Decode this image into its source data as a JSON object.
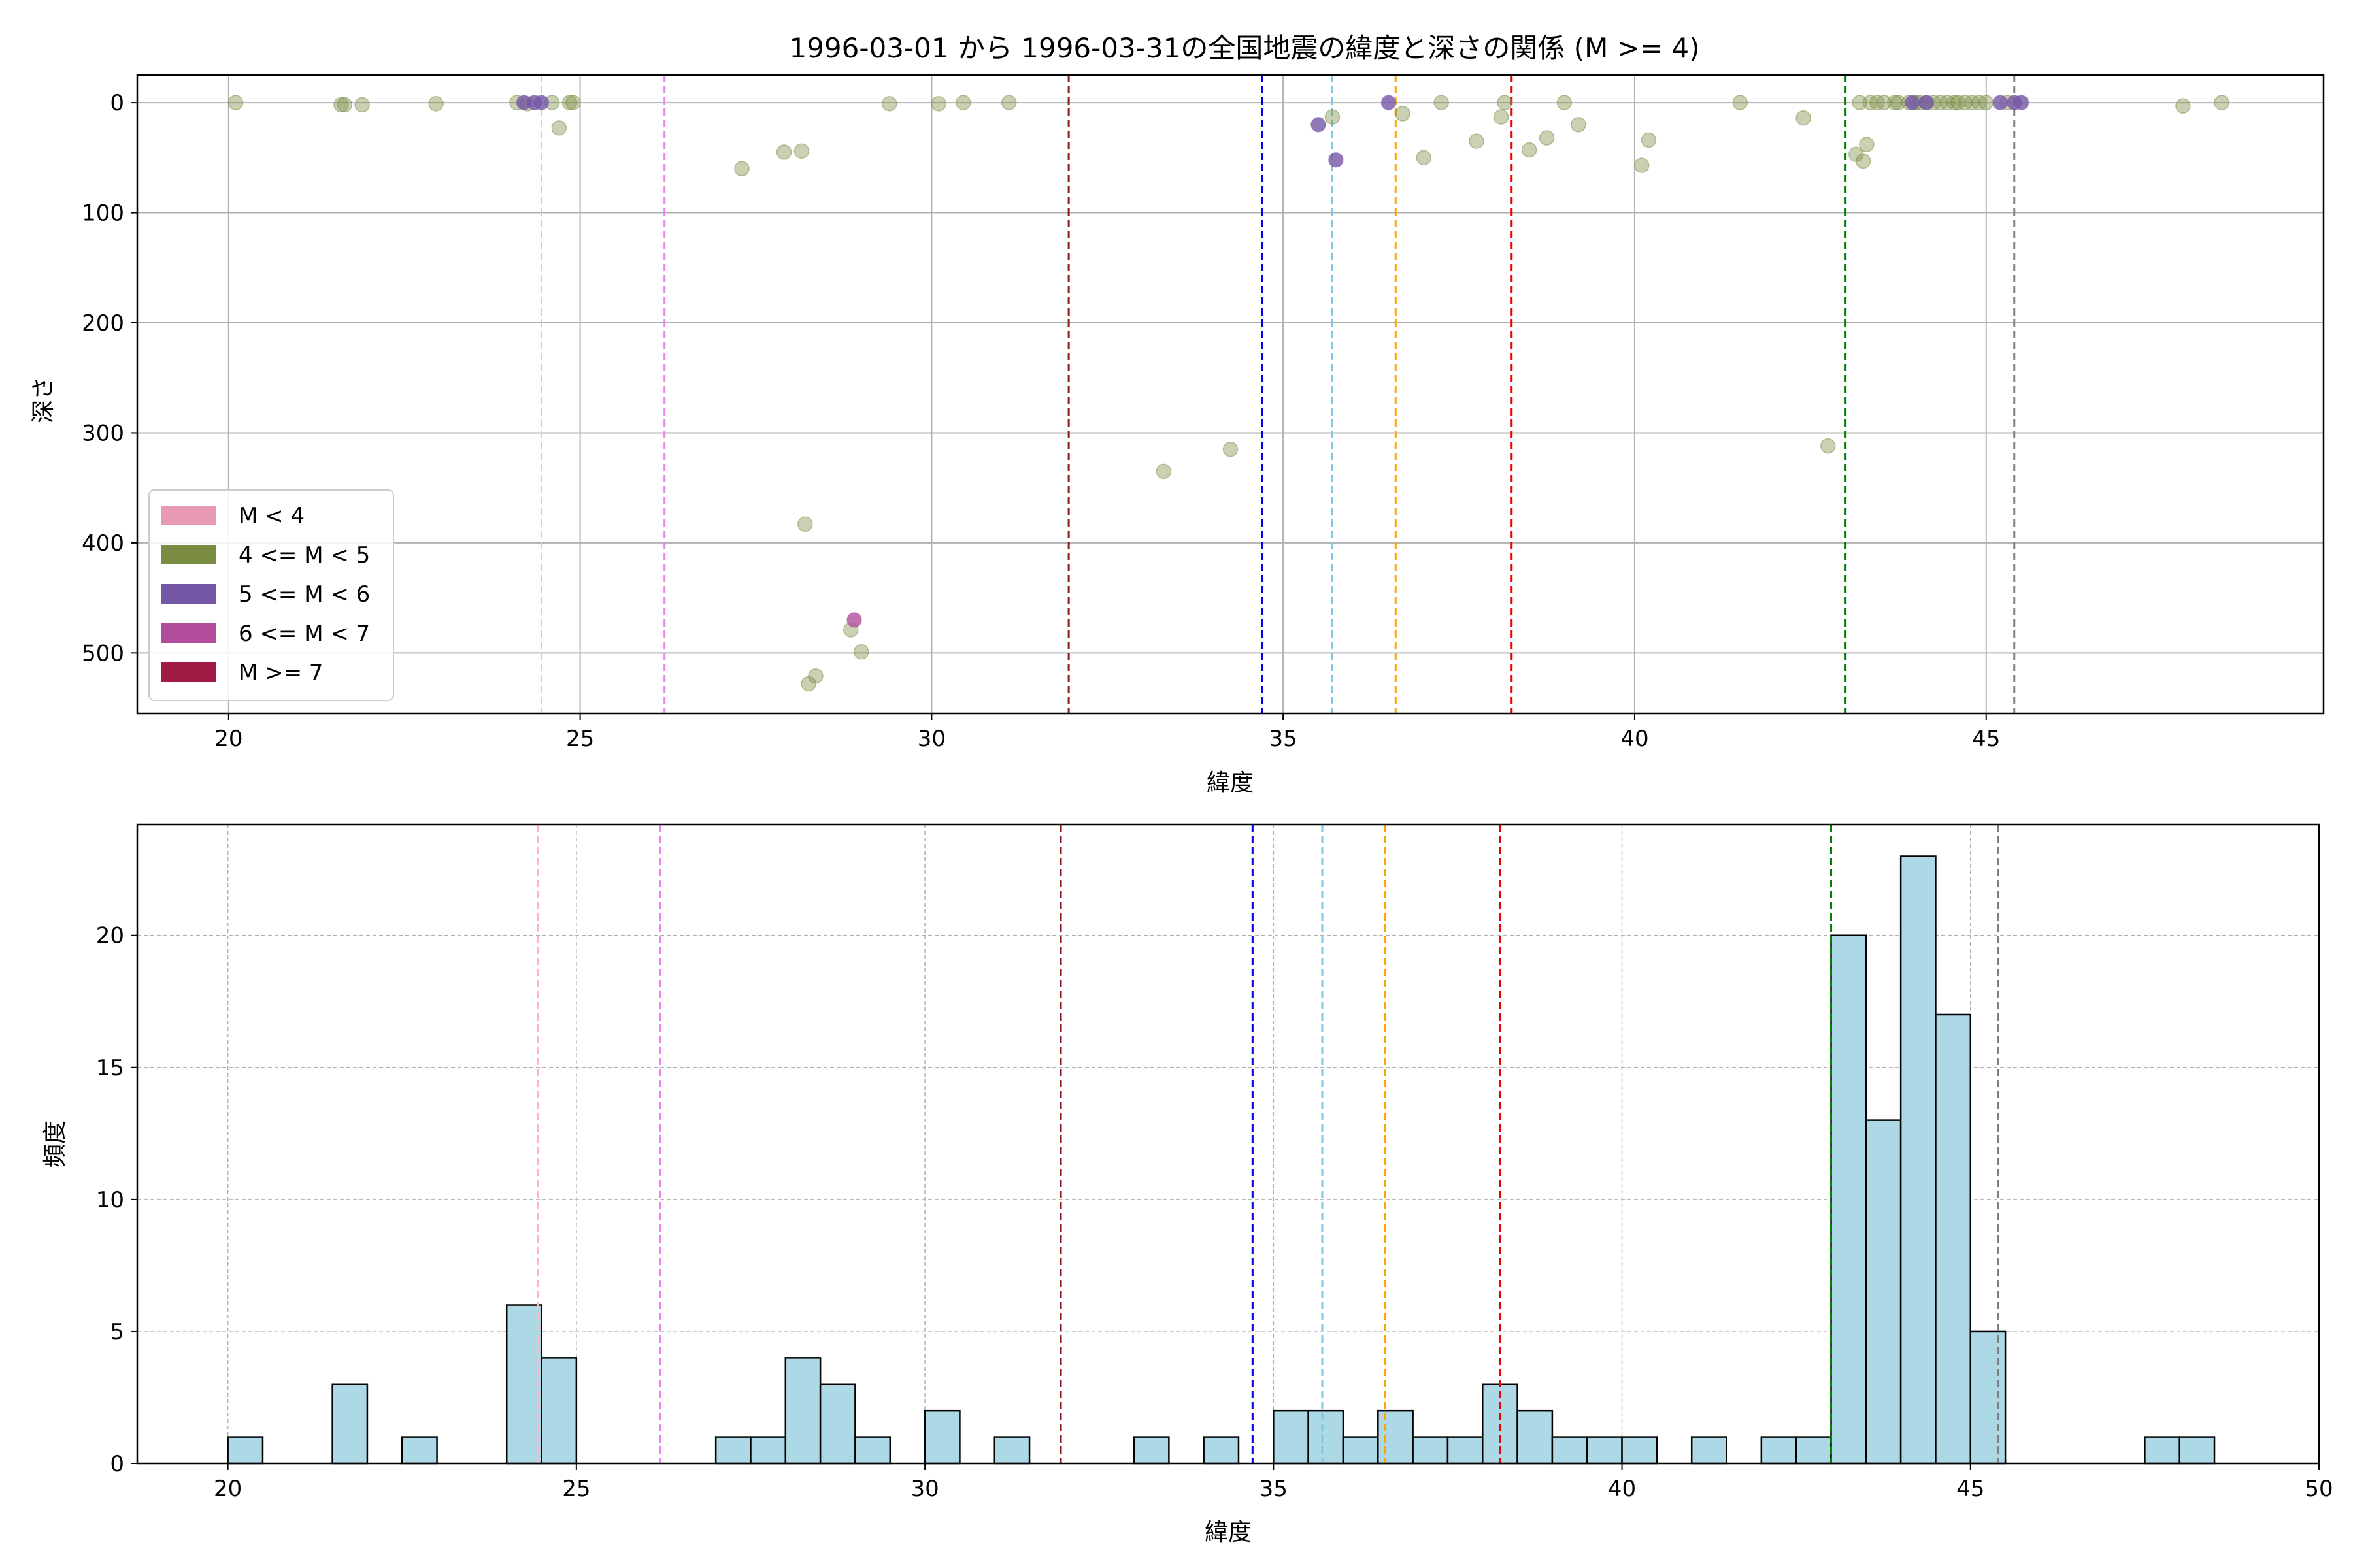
{
  "chart_data": [
    {
      "type": "scatter",
      "title": "1996-03-01 から 1996-03-31の全国地震の緯度と深さの関係 (M >= 4)",
      "xlabel": "緯度",
      "ylabel": "深さ",
      "xlim": [
        18.7,
        49.8
      ],
      "ylim": [
        555,
        -25
      ],
      "y_inverted": true,
      "xticks": [
        20,
        25,
        30,
        35,
        40,
        45
      ],
      "yticks": [
        0,
        100,
        200,
        300,
        400,
        500
      ],
      "grid": true,
      "legend_position": "lower-left",
      "legend": [
        {
          "label": "M < 4",
          "color": "#e89ab4"
        },
        {
          "label": "4 <= M < 5",
          "color": "#7a8c42"
        },
        {
          "label": "5 <= M < 6",
          "color": "#7557a8"
        },
        {
          "label": "6 <= M < 7",
          "color": "#b24d9b"
        },
        {
          "label": "M >= 7",
          "color": "#a01c44"
        }
      ],
      "vlines": [
        {
          "x": 24.45,
          "color": "#ffb6c1"
        },
        {
          "x": 26.2,
          "color": "#ee82ee"
        },
        {
          "x": 31.95,
          "color": "#8b1a1a"
        },
        {
          "x": 34.7,
          "color": "#0000ee"
        },
        {
          "x": 35.7,
          "color": "#7ec8e3"
        },
        {
          "x": 36.6,
          "color": "#ffa500"
        },
        {
          "x": 38.25,
          "color": "#ee0000"
        },
        {
          "x": 43.0,
          "color": "#008000"
        },
        {
          "x": 45.4,
          "color": "#808080"
        }
      ],
      "series": [
        {
          "name": "4 <= M < 5",
          "color": "#7a8c42",
          "x": [
            20.1,
            21.6,
            21.65,
            21.9,
            22.95,
            24.1,
            24.25,
            24.6,
            24.7,
            24.85,
            24.9,
            27.3,
            27.9,
            28.15,
            28.2,
            28.25,
            28.35,
            28.85,
            29.0,
            29.4,
            30.1,
            30.45,
            31.1,
            33.3,
            34.25,
            35.7,
            36.7,
            37.0,
            37.25,
            37.75,
            38.1,
            38.15,
            38.5,
            38.75,
            39.0,
            39.2,
            40.1,
            40.2,
            41.5,
            42.4,
            42.75,
            43.15,
            43.2,
            43.25,
            43.3,
            43.35,
            43.45,
            43.55,
            43.7,
            43.75,
            43.9,
            44.0,
            44.05,
            44.15,
            44.25,
            44.35,
            44.45,
            44.55,
            44.6,
            44.7,
            44.8,
            44.9,
            45.0,
            45.3,
            47.8,
            48.35
          ],
          "y": [
            0,
            2,
            2,
            2,
            1,
            0,
            1,
            0,
            23,
            0,
            0,
            60,
            45,
            44,
            383,
            528,
            521,
            479,
            499,
            1,
            1,
            0,
            0,
            335,
            315,
            13,
            10,
            50,
            0,
            35,
            13,
            0,
            43,
            32,
            0,
            20,
            57,
            34,
            0,
            14,
            312,
            47,
            0,
            53,
            38,
            0,
            0,
            0,
            0,
            0,
            0,
            0,
            0,
            0,
            0,
            0,
            0,
            0,
            0,
            0,
            0,
            0,
            0,
            0,
            3,
            0
          ]
        },
        {
          "name": "5 <= M < 6",
          "color": "#7557a8",
          "x": [
            24.2,
            24.35,
            24.45,
            35.5,
            35.75,
            36.5,
            43.95,
            44.15,
            45.2,
            45.4,
            45.5
          ],
          "y": [
            0,
            0,
            0,
            20,
            52,
            0,
            0,
            0,
            0,
            0,
            0
          ]
        },
        {
          "name": "6 <= M < 7",
          "color": "#b24d9b",
          "x": [
            28.9
          ],
          "y": [
            470
          ]
        }
      ]
    },
    {
      "type": "bar",
      "title": "",
      "xlabel": "緯度",
      "ylabel": "頻度",
      "xlim": [
        18.7,
        50.0
      ],
      "ylim": [
        0,
        24.2
      ],
      "xticks": [
        20,
        25,
        30,
        35,
        40,
        45,
        50
      ],
      "yticks": [
        0,
        5,
        10,
        15,
        20
      ],
      "grid": "dashed",
      "bin_width": 0.5,
      "bin_starts": [
        20.0,
        20.5,
        21.0,
        21.5,
        22.0,
        22.5,
        23.0,
        23.5,
        24.0,
        24.5,
        25.0,
        25.5,
        26.0,
        26.5,
        27.0,
        27.5,
        28.0,
        28.5,
        29.0,
        29.5,
        30.0,
        30.5,
        31.0,
        31.5,
        32.0,
        32.5,
        33.0,
        33.5,
        34.0,
        34.5,
        35.0,
        35.5,
        36.0,
        36.5,
        37.0,
        37.5,
        38.0,
        38.5,
        39.0,
        39.5,
        40.0,
        40.5,
        41.0,
        41.5,
        42.0,
        42.5,
        43.0,
        43.5,
        44.0,
        44.5,
        45.0,
        45.5,
        46.0,
        46.5,
        47.0,
        47.5,
        48.0,
        48.5
      ],
      "values": [
        1,
        0,
        0,
        3,
        0,
        1,
        0,
        0,
        6,
        4,
        0,
        0,
        0,
        0,
        1,
        1,
        4,
        3,
        1,
        0,
        2,
        0,
        1,
        0,
        0,
        0,
        1,
        0,
        1,
        0,
        2,
        2,
        1,
        2,
        1,
        1,
        3,
        2,
        1,
        1,
        1,
        0,
        1,
        0,
        1,
        1,
        20,
        13,
        23,
        17,
        5,
        0,
        0,
        0,
        0,
        1,
        1,
        0
      ],
      "bar_color": "#add8e6",
      "vlines": [
        {
          "x": 24.45,
          "color": "#ffb6c1"
        },
        {
          "x": 26.2,
          "color": "#ee82ee"
        },
        {
          "x": 31.95,
          "color": "#8b1a1a"
        },
        {
          "x": 34.7,
          "color": "#0000ee"
        },
        {
          "x": 35.7,
          "color": "#7ec8e3"
        },
        {
          "x": 36.6,
          "color": "#ffa500"
        },
        {
          "x": 38.25,
          "color": "#ee0000"
        },
        {
          "x": 43.0,
          "color": "#008000"
        },
        {
          "x": 45.4,
          "color": "#808080"
        }
      ]
    }
  ]
}
